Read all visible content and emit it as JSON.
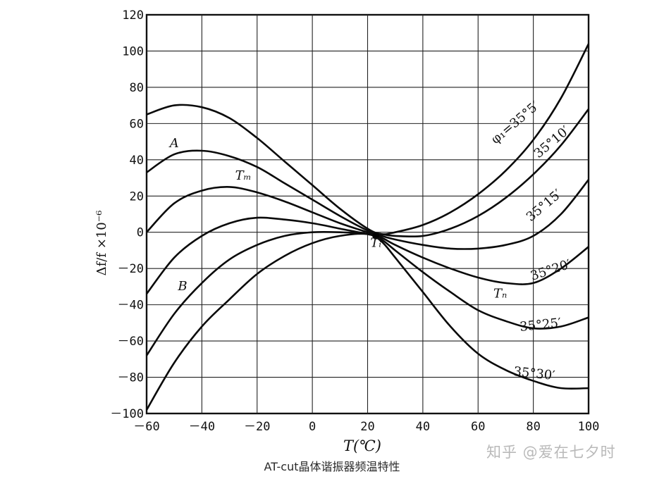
{
  "chart_data": {
    "type": "line",
    "title": "",
    "xlabel": "T(℃)",
    "ylabel": "Δf/f ×10⁻⁶",
    "xlim": [
      -60,
      100
    ],
    "ylim": [
      -100,
      120
    ],
    "x_ticks": [
      -60,
      -40,
      -20,
      0,
      20,
      40,
      60,
      80,
      100
    ],
    "x_tick_labels": [
      "－60",
      "－40",
      "－20",
      "0",
      "20",
      "40",
      "60",
      "80",
      "100"
    ],
    "y_ticks": [
      120,
      100,
      80,
      60,
      40,
      20,
      0,
      -20,
      -40,
      -60,
      -80,
      -100
    ],
    "y_tick_labels": [
      "120",
      "100",
      "80",
      "60",
      "40",
      "20",
      "0",
      "－20",
      "－40",
      "－60",
      "－80",
      "－100"
    ],
    "grid": true,
    "legend": "none",
    "series": [
      {
        "name": "φ₁=35°5′",
        "x": [
          -60,
          -50,
          -40,
          -30,
          -20,
          -10,
          0,
          10,
          20,
          25,
          30,
          40,
          50,
          60,
          70,
          80,
          90,
          100
        ],
        "y": [
          65,
          70,
          69,
          63,
          52,
          39,
          26,
          13,
          2,
          -1,
          0,
          4,
          11,
          21,
          34,
          51,
          74,
          104
        ]
      },
      {
        "name": "35°10′",
        "x": [
          -60,
          -50,
          -40,
          -30,
          -20,
          -10,
          0,
          10,
          20,
          25,
          30,
          40,
          50,
          60,
          70,
          80,
          90,
          100
        ],
        "y": [
          33,
          43,
          45,
          42,
          36,
          27,
          18,
          9,
          1,
          -1,
          -2,
          -2,
          2,
          9,
          19,
          32,
          48,
          68
        ]
      },
      {
        "name": "35°15′",
        "x": [
          -60,
          -50,
          -40,
          -30,
          -20,
          -10,
          0,
          10,
          20,
          25,
          30,
          40,
          50,
          60,
          70,
          80,
          90,
          100
        ],
        "y": [
          0,
          16,
          23,
          25,
          22,
          17,
          11,
          5,
          0,
          -2,
          -4,
          -7,
          -9,
          -9,
          -7,
          -2,
          10,
          29
        ]
      },
      {
        "name": "35°20′",
        "x": [
          -60,
          -50,
          -40,
          -30,
          -20,
          -10,
          0,
          10,
          20,
          25,
          30,
          40,
          50,
          60,
          70,
          80,
          90,
          100
        ],
        "y": [
          -34,
          -14,
          -2,
          5,
          8,
          7,
          5,
          2,
          -1,
          -3,
          -7,
          -14,
          -20,
          -25,
          -28,
          -28,
          -20,
          -8
        ]
      },
      {
        "name": "35°25′",
        "x": [
          -60,
          -50,
          -40,
          -30,
          -20,
          -10,
          0,
          10,
          20,
          25,
          30,
          40,
          50,
          60,
          70,
          80,
          90,
          100
        ],
        "y": [
          -68,
          -45,
          -28,
          -15,
          -7,
          -2,
          0,
          0,
          -1,
          -4,
          -10,
          -22,
          -33,
          -43,
          -49,
          -53,
          -52,
          -47
        ]
      },
      {
        "name": "35°30′",
        "x": [
          -60,
          -50,
          -40,
          -30,
          -20,
          -10,
          0,
          10,
          20,
          25,
          30,
          40,
          50,
          60,
          70,
          80,
          90,
          100
        ],
        "y": [
          -98,
          -72,
          -52,
          -37,
          -23,
          -13,
          -6,
          -2,
          -1,
          -5,
          -14,
          -33,
          -52,
          -67,
          -76,
          -82,
          -86,
          -86
        ]
      }
    ],
    "annotations": [
      {
        "text": "A",
        "x": -50,
        "y": 47
      },
      {
        "text": "Tₘ",
        "x": -25,
        "y": 29
      },
      {
        "text": "B",
        "x": -47,
        "y": -32
      },
      {
        "text": "Tᵢ",
        "x": 23,
        "y": -8
      },
      {
        "text": "Tₙ",
        "x": 68,
        "y": -36
      }
    ]
  },
  "caption": "AT-cut晶体谐振器频温特性",
  "watermark": "知乎 @爱在七夕时"
}
